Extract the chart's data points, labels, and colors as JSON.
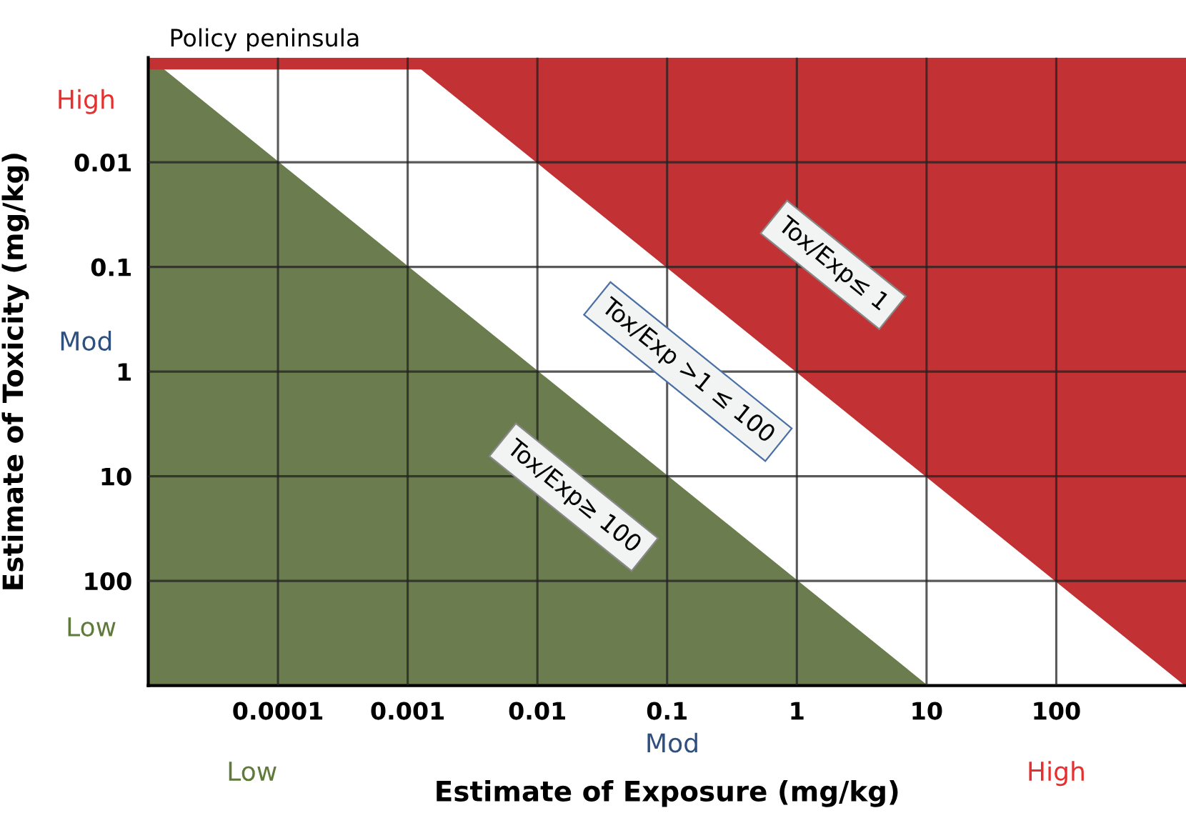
{
  "chart_data": {
    "type": "area",
    "xlabel": "Estimate of Exposure (mg/kg)",
    "ylabel": "Estimate of Toxicity (mg/kg)",
    "log": "xy",
    "xlim": [
      1e-05,
      1000
    ],
    "ylim": [
      1000,
      0.001
    ],
    "xticks": [
      0.0001,
      0.001,
      0.01,
      0.1,
      1,
      10,
      100
    ],
    "yticks": [
      0.01,
      0.1,
      1,
      10,
      100
    ],
    "grid": true,
    "series": [
      {
        "color": "#6b7d4e",
        "x": [
          1e-05,
          10
        ],
        "values": [
          0.001,
          1000
        ]
      },
      {
        "color": "#c23134",
        "x": [
          0.001,
          1000
        ],
        "values": [
          0.001,
          1000
        ]
      }
    ],
    "bands": [
      {
        "axis": "y",
        "from": 0.001,
        "to": 0.0013,
        "label": "Policy peninsula",
        "color": "#c23134"
      }
    ],
    "annotations": [
      "Tox/Exp≤ 1",
      "Tox/Exp >1 ≤ 100",
      "Tox/Exp≥ 100",
      "High",
      "Mod",
      "Low",
      "Low",
      "Mod",
      "High"
    ]
  }
}
